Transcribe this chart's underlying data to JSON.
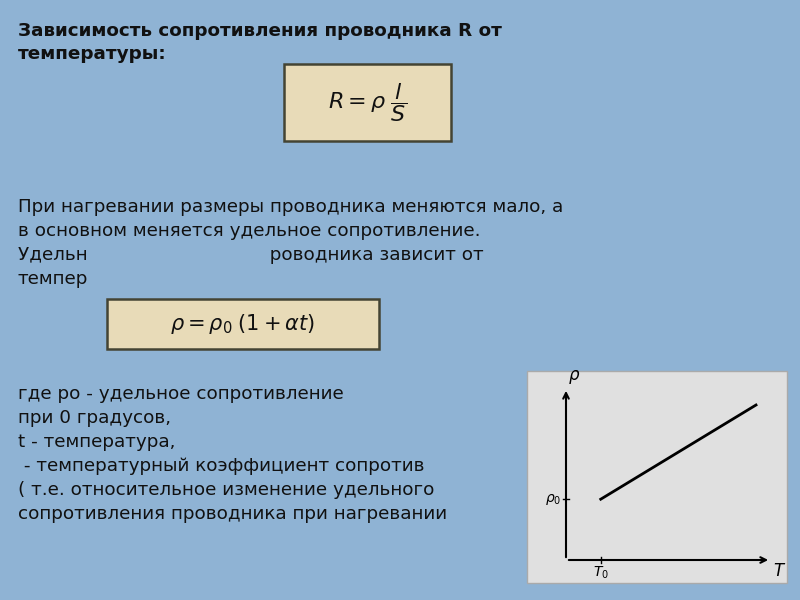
{
  "bg_color": "#8fb3d4",
  "text_color": "#111111",
  "formula_box_color": "#e8dbb8",
  "formula_box_edge": "#444433",
  "graph_box_color": "#e0e0e0",
  "figsize": [
    8.0,
    6.0
  ],
  "dpi": 100,
  "title_line1": "Зависимость сопротивления проводника R от",
  "title_line2": "температуры:",
  "para1_lines": [
    "При нагревании размеры проводника меняются мало, а",
    "в основном меняется удельное сопротивление.",
    "Удельн                               роводника зависит от",
    "темпер"
  ],
  "para2_lines": [
    "где ро - удельное сопротивление",
    "при 0 градусов,",
    "t - температура,",
    " - температурный коэффициент сопротив",
    "( т.е. относительное изменение удельного",
    "сопротивления проводника при нагревании"
  ]
}
